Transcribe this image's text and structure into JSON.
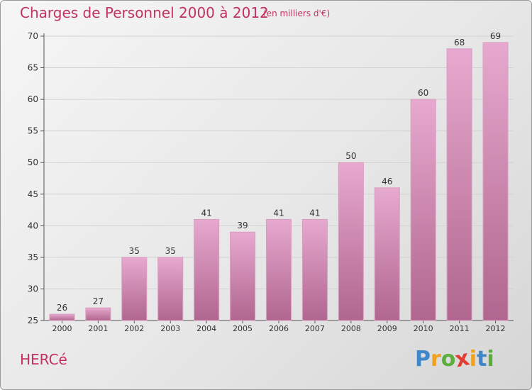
{
  "chart_data": {
    "type": "bar",
    "title": "Charges de Personnel 2000 à 2012",
    "subtitle": "(en milliers d'€)",
    "categories": [
      "2000",
      "2001",
      "2002",
      "2003",
      "2004",
      "2005",
      "2006",
      "2007",
      "2008",
      "2009",
      "2010",
      "2011",
      "2012"
    ],
    "values": [
      26,
      27,
      35,
      35,
      41,
      39,
      41,
      41,
      50,
      46,
      60,
      68,
      69
    ],
    "ylim": [
      25,
      70
    ],
    "yticks": [
      25,
      30,
      35,
      40,
      45,
      50,
      55,
      60,
      65,
      70
    ],
    "grid": true,
    "xlabel": "",
    "ylabel": "",
    "colors": {
      "bar_light": "#e7a9cf",
      "bar_dark": "#b0668f",
      "bar_edge": "#d79ec0",
      "text": "#c4325f"
    }
  },
  "location_label": "HERCé",
  "logo": {
    "letters": [
      "P",
      "r",
      "o",
      "x",
      "i",
      "t",
      "i"
    ],
    "colors": [
      "#3f87c8",
      "#f0a020",
      "#5aae3c",
      "#e23b2f",
      "#f0a020",
      "#3f87c8",
      "#5aae3c"
    ]
  }
}
